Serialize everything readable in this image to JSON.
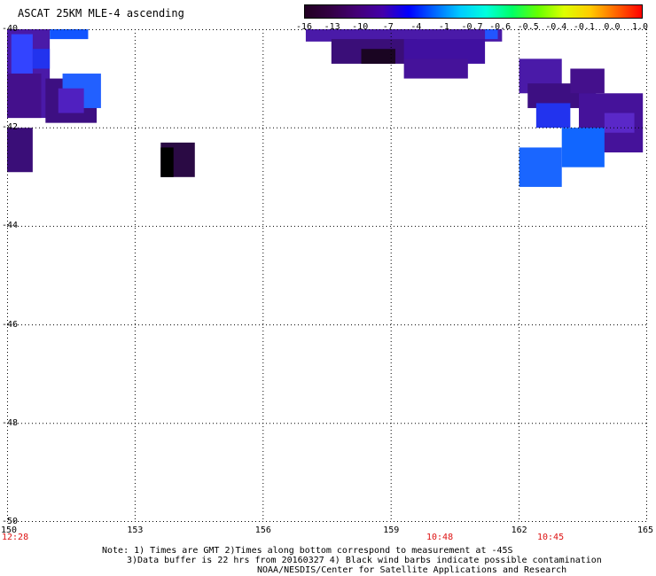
{
  "header": {
    "title": "ASCAT 25KM MLE-4 ascending"
  },
  "colorbar": {
    "labels": [
      "-16",
      "-13",
      "-10",
      "-7",
      "-4",
      "-1",
      "-0.7",
      "-0.6",
      "-0.5",
      "-0.4",
      "-0.1",
      "0.0",
      "1.0"
    ],
    "colors": [
      "#220022",
      "#330044",
      "#440077",
      "#4400aa",
      "#0000ff",
      "#0066ff",
      "#00ccff",
      "#00ffdd",
      "#00ff66",
      "#66ff00",
      "#ddff00",
      "#ffcc00",
      "#ff6600",
      "#ff0000"
    ]
  },
  "axes": {
    "lat_labels": [
      "-40",
      "-42",
      "-44",
      "-46",
      "-48",
      "-50"
    ],
    "lon_labels": [
      "150",
      "153",
      "156",
      "159",
      "162",
      "165"
    ],
    "time_labels": [
      "12:28",
      "10:48",
      "10:45"
    ]
  },
  "notes": {
    "line1": "Note: 1) Times are GMT 2)Times along bottom correspond to measurement at -45S",
    "line2": "3)Data buffer is 22 hrs from 20160327 4) Black wind barbs indicate possible contamination",
    "line3": "NOAA/NESDIS/Center for Satellite Applications and Research"
  },
  "map_data": {
    "lat_range": [
      -50,
      -40
    ],
    "lon_range": [
      150,
      165
    ],
    "grid": "dotted",
    "cells": [
      {
        "lon": 150.0,
        "lat": -40.0,
        "lon2": 151.0,
        "lat2": -41.8,
        "color": "#4a1aa8"
      },
      {
        "lon": 150.1,
        "lat": -40.1,
        "lon2": 150.6,
        "lat2": -40.9,
        "color": "#3344ff"
      },
      {
        "lon": 150.6,
        "lat": -40.4,
        "lon2": 151.0,
        "lat2": -40.8,
        "color": "#2233ee"
      },
      {
        "lon": 151.0,
        "lat": -40.0,
        "lon2": 151.9,
        "lat2": -40.2,
        "color": "#1155ff"
      },
      {
        "lon": 150.0,
        "lat": -40.9,
        "lon2": 150.8,
        "lat2": -41.8,
        "color": "#44108c"
      },
      {
        "lon": 150.0,
        "lat": -42.0,
        "lon2": 150.6,
        "lat2": -42.9,
        "color": "#3a0e78"
      },
      {
        "lon": 150.9,
        "lat": -41.0,
        "lon2": 152.1,
        "lat2": -41.9,
        "color": "#3d0f82"
      },
      {
        "lon": 151.3,
        "lat": -40.9,
        "lon2": 152.2,
        "lat2": -41.6,
        "color": "#2260ff"
      },
      {
        "lon": 151.2,
        "lat": -41.2,
        "lon2": 151.8,
        "lat2": -41.7,
        "color": "#5020c0"
      },
      {
        "lon": 153.6,
        "lat": -42.3,
        "lon2": 154.4,
        "lat2": -43.0,
        "color": "#2a0a44"
      },
      {
        "lon": 153.6,
        "lat": -42.4,
        "lon2": 153.9,
        "lat2": -43.0,
        "color": "#000000"
      },
      {
        "lon": 157.0,
        "lat": -40.0,
        "lon2": 161.6,
        "lat2": -40.25,
        "color": "#4a1aa8"
      },
      {
        "lon": 157.6,
        "lat": -40.2,
        "lon2": 159.6,
        "lat2": -40.7,
        "color": "#3a0e78"
      },
      {
        "lon": 158.3,
        "lat": -40.4,
        "lon2": 159.1,
        "lat2": -40.7,
        "color": "#1a0522"
      },
      {
        "lon": 159.3,
        "lat": -40.2,
        "lon2": 161.2,
        "lat2": -40.7,
        "color": "#4010a0"
      },
      {
        "lon": 159.3,
        "lat": -40.6,
        "lon2": 160.8,
        "lat2": -41.0,
        "color": "#45129a"
      },
      {
        "lon": 161.2,
        "lat": -40.0,
        "lon2": 161.5,
        "lat2": -40.2,
        "color": "#2255ff"
      },
      {
        "lon": 162.0,
        "lat": -40.6,
        "lon2": 163.0,
        "lat2": -41.3,
        "color": "#4a1aa8"
      },
      {
        "lon": 162.2,
        "lat": -41.1,
        "lon2": 163.8,
        "lat2": -41.6,
        "color": "#3d0f82"
      },
      {
        "lon": 163.2,
        "lat": -40.8,
        "lon2": 164.0,
        "lat2": -41.3,
        "color": "#44108c"
      },
      {
        "lon": 162.4,
        "lat": -41.5,
        "lon2": 163.2,
        "lat2": -42.0,
        "color": "#2233ee"
      },
      {
        "lon": 163.4,
        "lat": -41.3,
        "lon2": 164.9,
        "lat2": -42.5,
        "color": "#45129a"
      },
      {
        "lon": 164.0,
        "lat": -41.7,
        "lon2": 164.7,
        "lat2": -42.1,
        "color": "#5a28c8"
      },
      {
        "lon": 163.0,
        "lat": -42.0,
        "lon2": 164.0,
        "lat2": -42.8,
        "color": "#1166ff"
      },
      {
        "lon": 162.0,
        "lat": -42.4,
        "lon2": 163.0,
        "lat2": -43.2,
        "color": "#1a66ff"
      }
    ]
  }
}
